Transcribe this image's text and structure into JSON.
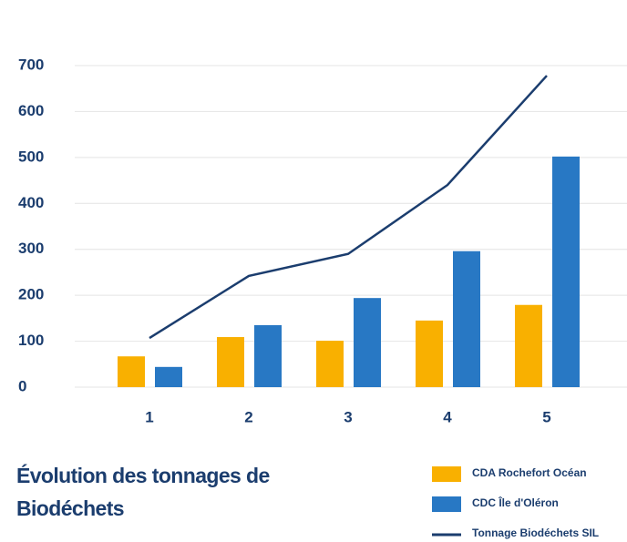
{
  "chart_data": {
    "type": "bar",
    "title": "Évolution des tonnages de Biodéchets",
    "categories": [
      "1",
      "2",
      "3",
      "4",
      "5"
    ],
    "series": [
      {
        "name": "CDA Rochefort Océan",
        "color": "#f9b000",
        "values": [
          67,
          109,
          101,
          145,
          179
        ]
      },
      {
        "name": "CDC Île d'Oléron",
        "color": "#2878c4",
        "values": [
          44,
          135,
          194,
          296,
          502
        ]
      },
      {
        "name": "Tonnage Biodéchets SIL",
        "color": "#1b3d6e",
        "type": "line",
        "values": [
          107,
          242,
          290,
          440,
          678
        ]
      }
    ],
    "ylim": [
      0,
      700
    ],
    "yticks": [
      0,
      100,
      200,
      300,
      400,
      500,
      600,
      700
    ],
    "grid": true,
    "legend": "bottom-right"
  }
}
